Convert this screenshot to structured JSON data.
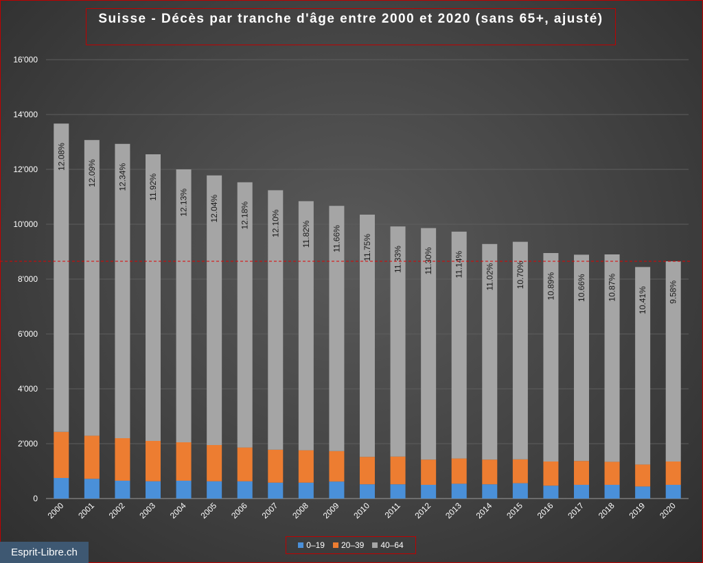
{
  "chart_data": {
    "type": "bar",
    "stacked": true,
    "title": "Suisse - Décès par tranche d'âge entre 2000 et 2020 (sans 65+, ajusté)",
    "categories": [
      "2000",
      "2001",
      "2002",
      "2003",
      "2004",
      "2005",
      "2006",
      "2007",
      "2008",
      "2009",
      "2010",
      "2011",
      "2012",
      "2013",
      "2014",
      "2015",
      "2016",
      "2017",
      "2018",
      "2019",
      "2020"
    ],
    "series": [
      {
        "name": "0–19",
        "color": "#4a90d9",
        "values": [
          750,
          720,
          650,
          630,
          650,
          630,
          630,
          580,
          580,
          620,
          520,
          520,
          500,
          540,
          520,
          560,
          470,
          500,
          500,
          440,
          500
        ]
      },
      {
        "name": "20–39",
        "color": "#ed7d31",
        "values": [
          1680,
          1570,
          1550,
          1470,
          1400,
          1320,
          1230,
          1200,
          1180,
          1110,
          1000,
          1010,
          920,
          920,
          900,
          870,
          880,
          870,
          840,
          800,
          850
        ]
      },
      {
        "name": "40–64",
        "color": "#a5a5a5",
        "values": [
          11240,
          10780,
          10730,
          10450,
          9950,
          9830,
          9670,
          9460,
          9080,
          8940,
          8830,
          8390,
          8440,
          8270,
          7860,
          7930,
          7600,
          7520,
          7560,
          7200,
          7300
        ]
      }
    ],
    "data_labels": [
      "12.08%",
      "12.09%",
      "12.34%",
      "11.92%",
      "12.13%",
      "12.04%",
      "12.18%",
      "12.10%",
      "11.82%",
      "11.66%",
      "11.75%",
      "11.33%",
      "11.30%",
      "11.14%",
      "11.02%",
      "10.70%",
      "10.89%",
      "10.66%",
      "10.87%",
      "10.41%",
      "9.58%"
    ],
    "y_ticks": [
      "0",
      "2'000",
      "4'000",
      "6'000",
      "8'000",
      "10'000",
      "12'000",
      "14'000",
      "16'000"
    ],
    "ylim": [
      0,
      16000
    ],
    "reference_line": {
      "value": 8650,
      "color": "#e00000",
      "style": "dashed"
    },
    "grid": true,
    "legend_position": "bottom"
  },
  "watermark": "Esprit-Libre.ch"
}
